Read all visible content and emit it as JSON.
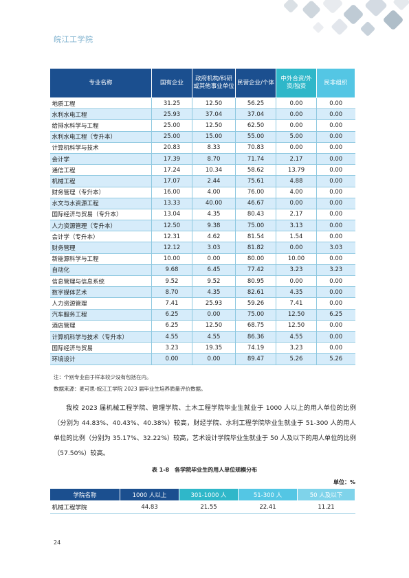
{
  "header": {
    "school_name": "皖江工学院"
  },
  "table1": {
    "headers": [
      "专业名称",
      "国有企业",
      "政府机构/科研或其他事业单位",
      "民营企业/个体",
      "中外合资/外资/独资",
      "民非组织"
    ],
    "rows": [
      [
        "地质工程",
        "31.25",
        "12.50",
        "56.25",
        "0.00",
        "0.00"
      ],
      [
        "水利水电工程",
        "25.93",
        "37.04",
        "37.04",
        "0.00",
        "0.00"
      ],
      [
        "给排水科学与工程",
        "25.00",
        "12.50",
        "62.50",
        "0.00",
        "0.00"
      ],
      [
        "水利水电工程（专升本）",
        "25.00",
        "15.00",
        "55.00",
        "5.00",
        "0.00"
      ],
      [
        "计算机科学与技术",
        "20.83",
        "8.33",
        "70.83",
        "0.00",
        "0.00"
      ],
      [
        "会计学",
        "17.39",
        "8.70",
        "71.74",
        "2.17",
        "0.00"
      ],
      [
        "通信工程",
        "17.24",
        "10.34",
        "58.62",
        "13.79",
        "0.00"
      ],
      [
        "机械工程",
        "17.07",
        "2.44",
        "75.61",
        "4.88",
        "0.00"
      ],
      [
        "财务管理（专升本）",
        "16.00",
        "4.00",
        "76.00",
        "4.00",
        "0.00"
      ],
      [
        "水文与水资源工程",
        "13.33",
        "40.00",
        "46.67",
        "0.00",
        "0.00"
      ],
      [
        "国际经济与贸易（专升本）",
        "13.04",
        "4.35",
        "80.43",
        "2.17",
        "0.00"
      ],
      [
        "人力资源管理（专升本）",
        "12.50",
        "9.38",
        "75.00",
        "3.13",
        "0.00"
      ],
      [
        "会计学（专升本）",
        "12.31",
        "4.62",
        "81.54",
        "1.54",
        "0.00"
      ],
      [
        "财务管理",
        "12.12",
        "3.03",
        "81.82",
        "0.00",
        "3.03"
      ],
      [
        "新能源科学与工程",
        "10.00",
        "0.00",
        "80.00",
        "10.00",
        "0.00"
      ],
      [
        "自动化",
        "9.68",
        "6.45",
        "77.42",
        "3.23",
        "3.23"
      ],
      [
        "信息管理与信息系统",
        "9.52",
        "9.52",
        "80.95",
        "0.00",
        "0.00"
      ],
      [
        "数字媒体艺术",
        "8.70",
        "4.35",
        "82.61",
        "4.35",
        "0.00"
      ],
      [
        "人力资源管理",
        "7.41",
        "25.93",
        "59.26",
        "7.41",
        "0.00"
      ],
      [
        "汽车服务工程",
        "6.25",
        "0.00",
        "75.00",
        "12.50",
        "6.25"
      ],
      [
        "酒店管理",
        "6.25",
        "12.50",
        "68.75",
        "12.50",
        "0.00"
      ],
      [
        "计算机科学与技术（专升本）",
        "4.55",
        "4.55",
        "86.36",
        "4.55",
        "0.00"
      ],
      [
        "国际经济与贸易",
        "3.23",
        "19.35",
        "74.19",
        "3.23",
        "0.00"
      ],
      [
        "环境设计",
        "0.00",
        "0.00",
        "89.47",
        "5.26",
        "5.26"
      ]
    ]
  },
  "notes": {
    "note1": "注：个别专业由于样本较少没有包括在内。",
    "source": "数据来源：麦可思-皖江工学院 2023 届毕业生培养质量评价数据。"
  },
  "paragraph": "我校 2023 届机械工程学院、管理学院、土木工程学院毕业生就业于 1000 人以上的用人单位的比例（分别为 44.83%、40.43%、40.38%）较高，财经学院、水利工程学院毕业生就业于 51-300 人的用人单位的比例（分别为 35.17%、32.22%）较高，艺术设计学院毕业生就业于 50 人及以下的用人单位的比例（57.50%）较高。",
  "table2": {
    "caption": "表 1-8　各学院毕业生的用人单位规模分布",
    "unit": "单位：%",
    "headers": [
      "学院名称",
      "1000 人以上",
      "301-1000 人",
      "51-300 人",
      "50 人及以下"
    ],
    "rows": [
      [
        "机械工程学院",
        "44.83",
        "21.55",
        "22.41",
        "11.21"
      ]
    ]
  },
  "footer": {
    "page_number": "24"
  },
  "colors": {
    "header_dark": "#1b4f8f",
    "header_teal": "#2fb7c9",
    "header_light": "#54c6e4",
    "row_alt": "#d6ecfa"
  }
}
